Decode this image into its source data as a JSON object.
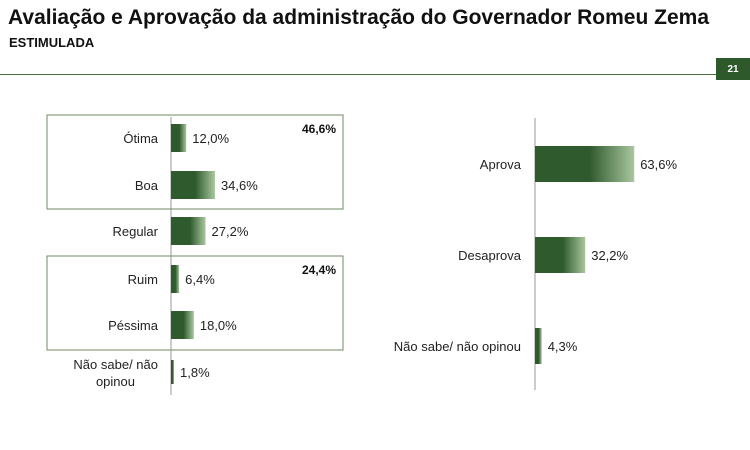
{
  "header": {
    "title": "Avaliação e Aprovação da administração do Governador Romeu Zema",
    "subtitle": "ESTIMULADA",
    "page_number": "21"
  },
  "colors": {
    "bar_dark": "#2f5a2e",
    "bar_light": "#a9c79e",
    "rule": "#4a6b3c"
  },
  "chart_data": [
    {
      "type": "bar",
      "orientation": "horizontal",
      "categories": [
        "Ótima",
        "Boa",
        "Regular",
        "Ruim",
        "Péssima",
        "Não sabe/ não opinou"
      ],
      "values": [
        12.0,
        34.6,
        27.2,
        6.4,
        18.0,
        1.8
      ],
      "value_labels": [
        "12,0%",
        "34,6%",
        "27,2%",
        "6,4%",
        "18,0%",
        "1,8%"
      ],
      "groups": [
        {
          "members": [
            "Ótima",
            "Boa"
          ],
          "total_label": "46,6%"
        },
        {
          "members": [
            "Ruim",
            "Péssima"
          ],
          "total_label": "24,4%"
        }
      ]
    },
    {
      "type": "bar",
      "orientation": "horizontal",
      "categories": [
        "Aprova",
        "Desaprova",
        "Não sabe/ não opinou"
      ],
      "values": [
        63.6,
        32.2,
        4.3
      ],
      "value_labels": [
        "63,6%",
        "32,2%",
        "4,3%"
      ]
    }
  ]
}
